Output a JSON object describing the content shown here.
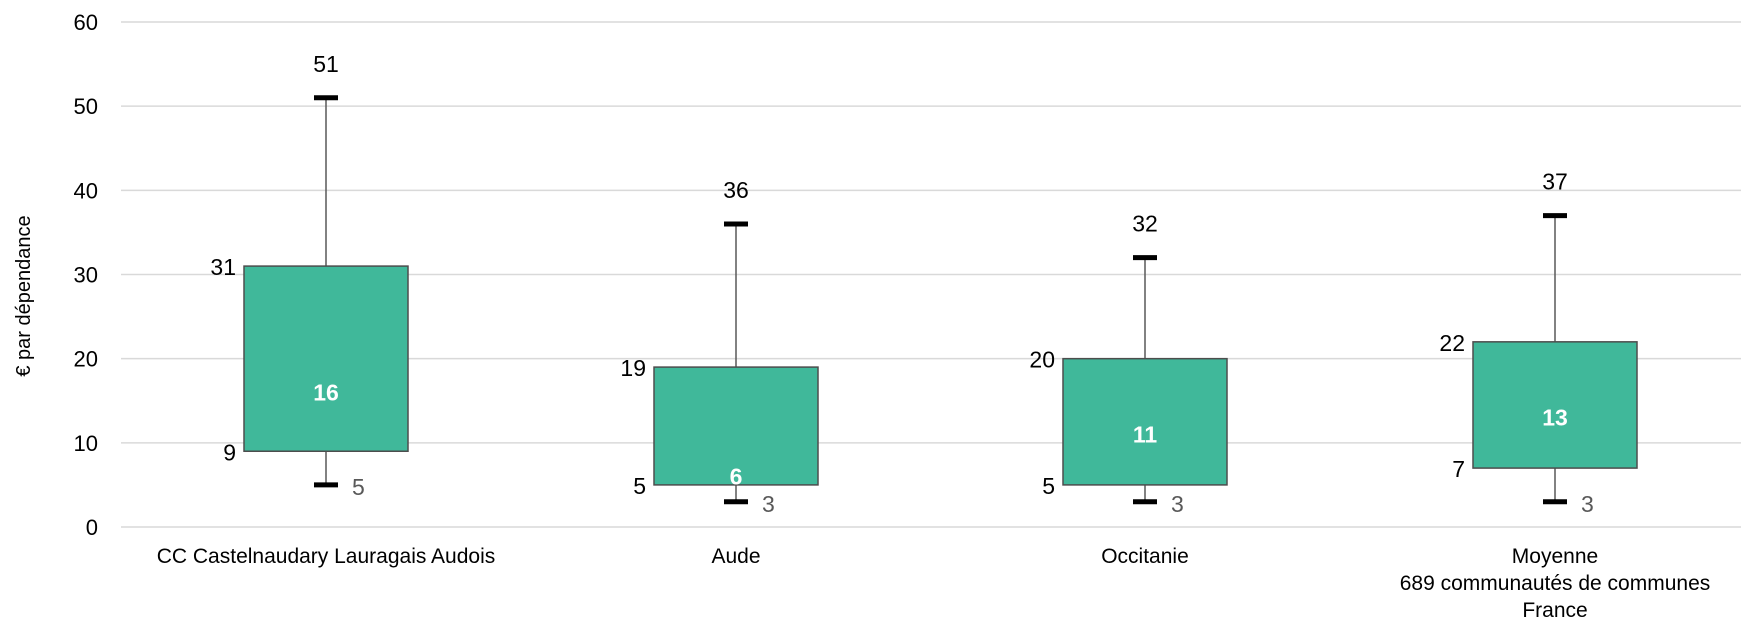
{
  "colors": {
    "box_fill": "#40B89A",
    "box_stroke": "#4D4D4D",
    "whisker": "#595959",
    "cap": "#000000",
    "grid": "#D9D9D9",
    "median_text": "#FFFFFF",
    "min_text": "#595959"
  },
  "chart_data": {
    "type": "boxplot",
    "title": "",
    "xlabel": "",
    "ylabel": "€  par dépendance",
    "ylim": [
      0,
      60
    ],
    "yticks": [
      0,
      10,
      20,
      30,
      40,
      50,
      60
    ],
    "grid": true,
    "categories": [
      {
        "label_lines": [
          "CC Castelnaudary Lauragais Audois"
        ],
        "min": 5,
        "q1": 9,
        "median": 16,
        "q3": 31,
        "max": 51
      },
      {
        "label_lines": [
          "Aude"
        ],
        "min": 3,
        "q1": 5,
        "median": 6,
        "q3": 19,
        "max": 36
      },
      {
        "label_lines": [
          "Occitanie"
        ],
        "min": 3,
        "q1": 5,
        "median": 11,
        "q3": 20,
        "max": 32
      },
      {
        "label_lines": [
          "Moyenne",
          "689 communautés de communes",
          "France"
        ],
        "min": 3,
        "q1": 7,
        "median": 13,
        "q3": 22,
        "max": 37
      }
    ]
  }
}
